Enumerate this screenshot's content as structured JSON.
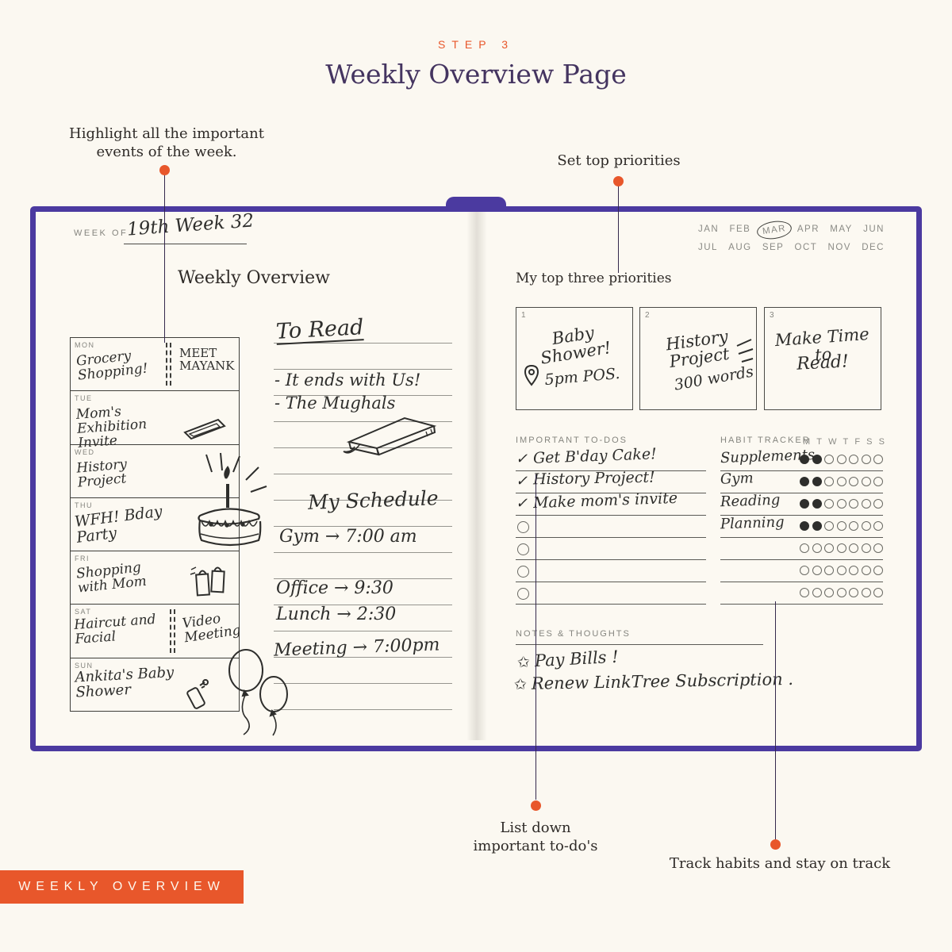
{
  "page": {
    "step_label": "STEP 3",
    "title": "Weekly Overview Page",
    "banner": "WEEKLY OVERVIEW"
  },
  "colors": {
    "accent_orange": "#E8572B",
    "notebook_purple": "#4B3AA0",
    "title_purple": "#443460",
    "ink": "#2e2e2c",
    "background": "#FBF8F1"
  },
  "annotations": {
    "events_line1": "Highlight all the important",
    "events_line2": "events of the week.",
    "priorities": "Set top priorities",
    "todos_line1": "List down",
    "todos_line2": "important to-do's",
    "habits": "Track habits and stay on track"
  },
  "icons": {
    "check": "✓",
    "star": "✩"
  },
  "notebook": {
    "left_page": {
      "week_of_label": "WEEK OF",
      "week_of_value": "19th Week 32",
      "title": "Weekly Overview",
      "days": [
        {
          "label": "MON",
          "entry": "Grocery Shopping!",
          "entry2": "MEET MAYANK"
        },
        {
          "label": "TUE",
          "entry": "Mom's Exhibition Invite",
          "entry2": ""
        },
        {
          "label": "WED",
          "entry": "History Project",
          "entry2": ""
        },
        {
          "label": "THU",
          "entry": "WFH! Bday Party",
          "entry2": ""
        },
        {
          "label": "FRI",
          "entry": "Shopping with Mom",
          "entry2": ""
        },
        {
          "label": "SAT",
          "entry": "Haircut and Facial",
          "entry2": "Video Meeting"
        },
        {
          "label": "SUN",
          "entry": "Ankita's Baby Shower",
          "entry2": ""
        }
      ],
      "read_title": "To Read",
      "read_item1": "- It ends with Us!",
      "read_item2": "- The Mughals",
      "schedule_title": "My Schedule",
      "schedule_item1": "Gym → 7:00 am",
      "schedule_item2": "Office → 9:30",
      "schedule_item3": "Lunch → 2:30",
      "schedule_item4": "Meeting → 7:00pm"
    },
    "right_page": {
      "months_row1": [
        "JAN",
        "FEB",
        "MAR",
        "APR",
        "MAY",
        "JUN"
      ],
      "months_row2": [
        "JUL",
        "AUG",
        "SEP",
        "OCT",
        "NOV",
        "DEC"
      ],
      "circled_month": "MAR",
      "priorities_title": "My top three priorities",
      "priorities": [
        {
          "number": "1",
          "line1": "Baby Shower!",
          "line2": "5pm POS."
        },
        {
          "number": "2",
          "line1": "History Project",
          "line2": "300 words"
        },
        {
          "number": "3",
          "line1": "Make Time to",
          "line2": "Read!"
        }
      ],
      "todos_title": "IMPORTANT TO-DOS",
      "todo_rows": [
        {
          "text": "Get B'day Cake!",
          "checked": true
        },
        {
          "text": "History Project!",
          "checked": true
        },
        {
          "text": "Make mom's invite",
          "checked": true
        },
        {
          "text": "",
          "checked": false
        },
        {
          "text": "",
          "checked": false
        },
        {
          "text": "",
          "checked": false
        },
        {
          "text": "",
          "checked": false
        }
      ],
      "habit_title": "HABIT TRACKER",
      "habit_days": [
        "M",
        "T",
        "W",
        "T",
        "F",
        "S",
        "S"
      ],
      "habit_rows": [
        {
          "label": "Supplements",
          "filled": 2,
          "total": 7
        },
        {
          "label": "Gym",
          "filled": 2,
          "total": 7
        },
        {
          "label": "Reading",
          "filled": 2,
          "total": 7
        },
        {
          "label": "Planning",
          "filled": 2,
          "total": 7
        },
        {
          "label": "",
          "filled": 0,
          "total": 7
        },
        {
          "label": "",
          "filled": 0,
          "total": 7
        },
        {
          "label": "",
          "filled": 0,
          "total": 7
        }
      ],
      "notes_title": "NOTES  &  THOUGHTS",
      "note1": "Pay Bills !",
      "note2": "Renew LinkTree Subscription ."
    }
  }
}
